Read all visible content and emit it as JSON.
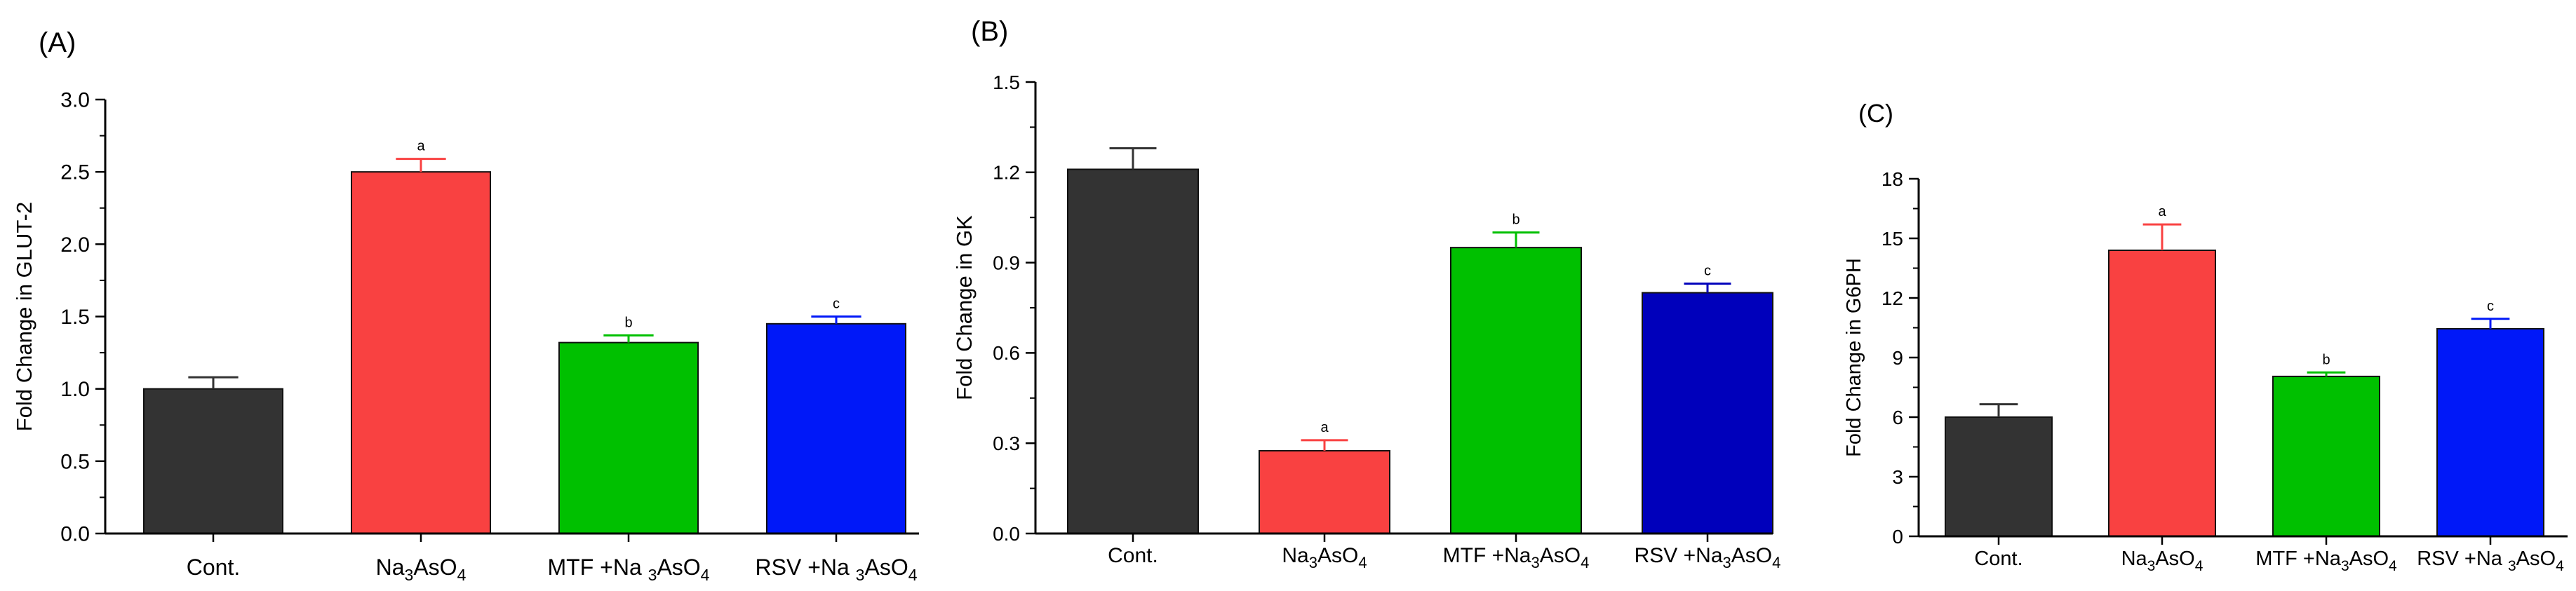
{
  "chart_data": [
    {
      "type": "bar",
      "panel_label": "(A)",
      "ylabel": "Fold Change in GLUT-2",
      "xlabel": "",
      "ylim": [
        0,
        3.0
      ],
      "yticks": [
        "0.0",
        "0.5",
        "1.0",
        "1.5",
        "2.0",
        "2.5",
        "3.0"
      ],
      "categories": [
        {
          "parts": [
            {
              "t": "Cont.",
              "s": false
            }
          ]
        },
        {
          "parts": [
            {
              "t": "Na",
              "s": false
            },
            {
              "t": "3",
              "s": true
            },
            {
              "t": "AsO",
              "s": false
            },
            {
              "t": "4",
              "s": true
            }
          ]
        },
        {
          "parts": [
            {
              "t": "MTF +Na ",
              "s": false
            },
            {
              "t": "3",
              "s": true
            },
            {
              "t": "AsO",
              "s": false
            },
            {
              "t": "4",
              "s": true
            }
          ]
        },
        {
          "parts": [
            {
              "t": "RSV +Na ",
              "s": false
            },
            {
              "t": "3",
              "s": true
            },
            {
              "t": "AsO",
              "s": false
            },
            {
              "t": "4",
              "s": true
            }
          ]
        }
      ],
      "values": [
        1.0,
        2.5,
        1.32,
        1.45
      ],
      "errors": [
        0.08,
        0.09,
        0.05,
        0.05
      ],
      "annotations": [
        "",
        "a",
        "b",
        "c"
      ],
      "colors": [
        "#333333",
        "#f94141",
        "#00c000",
        "#0018f8"
      ],
      "error_colors": [
        "#333333",
        "#f94141",
        "#00c000",
        "#0018f8"
      ]
    },
    {
      "type": "bar",
      "panel_label": "(B)",
      "ylabel": "Fold Change in GK",
      "xlabel": "",
      "ylim": [
        0,
        1.5
      ],
      "yticks": [
        "0.0",
        "0.3",
        "0.6",
        "0.9",
        "1.2",
        "1.5"
      ],
      "categories": [
        {
          "parts": [
            {
              "t": "Cont.",
              "s": false
            }
          ]
        },
        {
          "parts": [
            {
              "t": "Na",
              "s": false
            },
            {
              "t": "3",
              "s": true
            },
            {
              "t": "AsO",
              "s": false
            },
            {
              "t": "4",
              "s": true
            }
          ]
        },
        {
          "parts": [
            {
              "t": "MTF +Na",
              "s": false
            },
            {
              "t": "3",
              "s": true
            },
            {
              "t": "AsO",
              "s": false
            },
            {
              "t": "4",
              "s": true
            }
          ]
        },
        {
          "parts": [
            {
              "t": "RSV +Na",
              "s": false
            },
            {
              "t": "3",
              "s": true
            },
            {
              "t": "AsO",
              "s": false
            },
            {
              "t": "4",
              "s": true
            }
          ]
        }
      ],
      "values": [
        1.21,
        0.275,
        0.95,
        0.8
      ],
      "errors": [
        0.07,
        0.035,
        0.05,
        0.03
      ],
      "annotations": [
        "",
        "a",
        "b",
        "c"
      ],
      "colors": [
        "#333333",
        "#f94141",
        "#00c000",
        "#0000bb"
      ],
      "error_colors": [
        "#333333",
        "#f94141",
        "#00c000",
        "#0000bb"
      ]
    },
    {
      "type": "bar",
      "panel_label": "(C)",
      "ylabel": "Fold Change in G6PH",
      "xlabel": "",
      "ylim": [
        0,
        18
      ],
      "yticks": [
        "0",
        "3",
        "6",
        "9",
        "12",
        "15",
        "18"
      ],
      "categories": [
        {
          "parts": [
            {
              "t": "Cont.",
              "s": false
            }
          ]
        },
        {
          "parts": [
            {
              "t": "Na",
              "s": false
            },
            {
              "t": "3",
              "s": true
            },
            {
              "t": "AsO",
              "s": false
            },
            {
              "t": "4",
              "s": true
            }
          ]
        },
        {
          "parts": [
            {
              "t": "MTF +Na",
              "s": false
            },
            {
              "t": "3",
              "s": true
            },
            {
              "t": "AsO",
              "s": false
            },
            {
              "t": "4",
              "s": true
            }
          ]
        },
        {
          "parts": [
            {
              "t": "RSV +Na ",
              "s": false
            },
            {
              "t": "3",
              "s": true
            },
            {
              "t": "AsO",
              "s": false
            },
            {
              "t": "4",
              "s": true
            }
          ]
        }
      ],
      "values": [
        6.0,
        14.4,
        8.05,
        10.45
      ],
      "errors": [
        0.65,
        1.3,
        0.2,
        0.5
      ],
      "annotations": [
        "",
        "a",
        "b",
        "c"
      ],
      "colors": [
        "#333333",
        "#f94141",
        "#00c000",
        "#0018f8"
      ],
      "error_colors": [
        "#333333",
        "#f94141",
        "#00c000",
        "#0018f8"
      ]
    }
  ]
}
